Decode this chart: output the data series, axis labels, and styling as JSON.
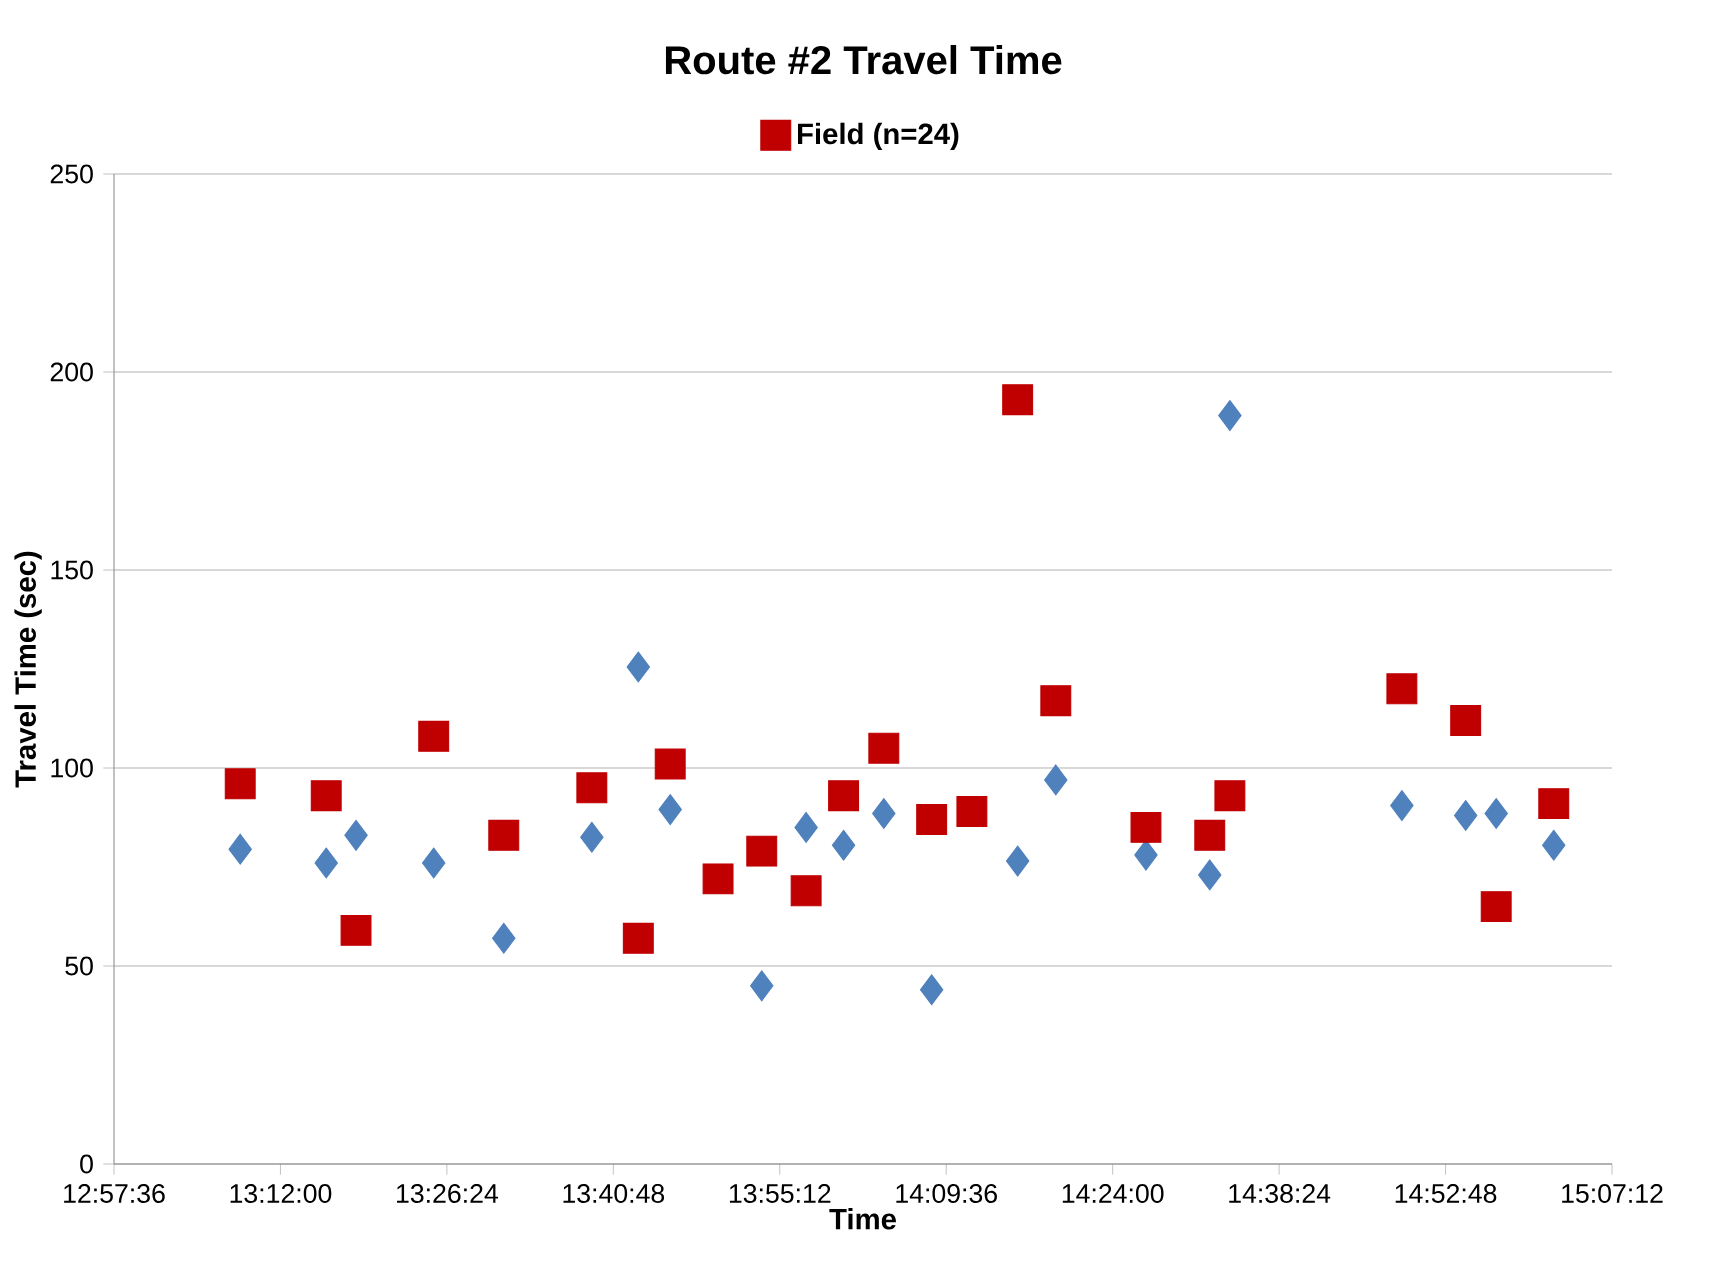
{
  "chart_data": {
    "type": "scatter",
    "title": "Route #2 Travel Time",
    "xlabel": "Time",
    "ylabel": "Travel Time (sec)",
    "x": [
      13.142,
      13.266,
      13.309,
      13.421,
      13.522,
      13.649,
      13.716,
      13.762,
      13.831,
      13.894,
      13.958,
      14.012,
      14.07,
      14.139,
      14.197,
      14.263,
      14.318,
      14.448,
      14.54,
      14.569,
      14.817,
      14.909,
      14.953,
      15.036
    ],
    "series": [
      {
        "color": "#4f81bd",
        "marker": "diamond",
        "values": [
          79.5,
          76,
          83,
          76,
          57,
          82.5,
          125.5,
          89.5,
          null,
          45,
          85,
          80.5,
          88.5,
          44,
          null,
          76.5,
          97,
          78,
          73,
          189,
          90.5,
          88,
          88.5,
          80.5
        ]
      },
      {
        "name": "Field (n=24)",
        "color": "#c00000",
        "marker": "square",
        "values": [
          96,
          93,
          59,
          108,
          83,
          95,
          57,
          101,
          72,
          79,
          69,
          93,
          105,
          87,
          89,
          193,
          117,
          85,
          83,
          93,
          120,
          112,
          65,
          91
        ]
      }
    ],
    "xlim": [
      12.96,
      15.12
    ],
    "xticks": [
      {
        "value": 12.96,
        "label": "12:57:36"
      },
      {
        "value": 13.2,
        "label": "13:12:00"
      },
      {
        "value": 13.44,
        "label": "13:26:24"
      },
      {
        "value": 13.68,
        "label": "13:40:48"
      },
      {
        "value": 13.92,
        "label": "13:55:12"
      },
      {
        "value": 14.16,
        "label": "14:09:36"
      },
      {
        "value": 14.4,
        "label": "14:24:00"
      },
      {
        "value": 14.64,
        "label": "14:38:24"
      },
      {
        "value": 14.88,
        "label": "14:52:48"
      },
      {
        "value": 15.12,
        "label": "15:07:12"
      }
    ],
    "ylim": [
      0,
      250
    ],
    "yticks": [
      0,
      50,
      100,
      150,
      200,
      250
    ],
    "grid": "y",
    "legend": "top"
  }
}
